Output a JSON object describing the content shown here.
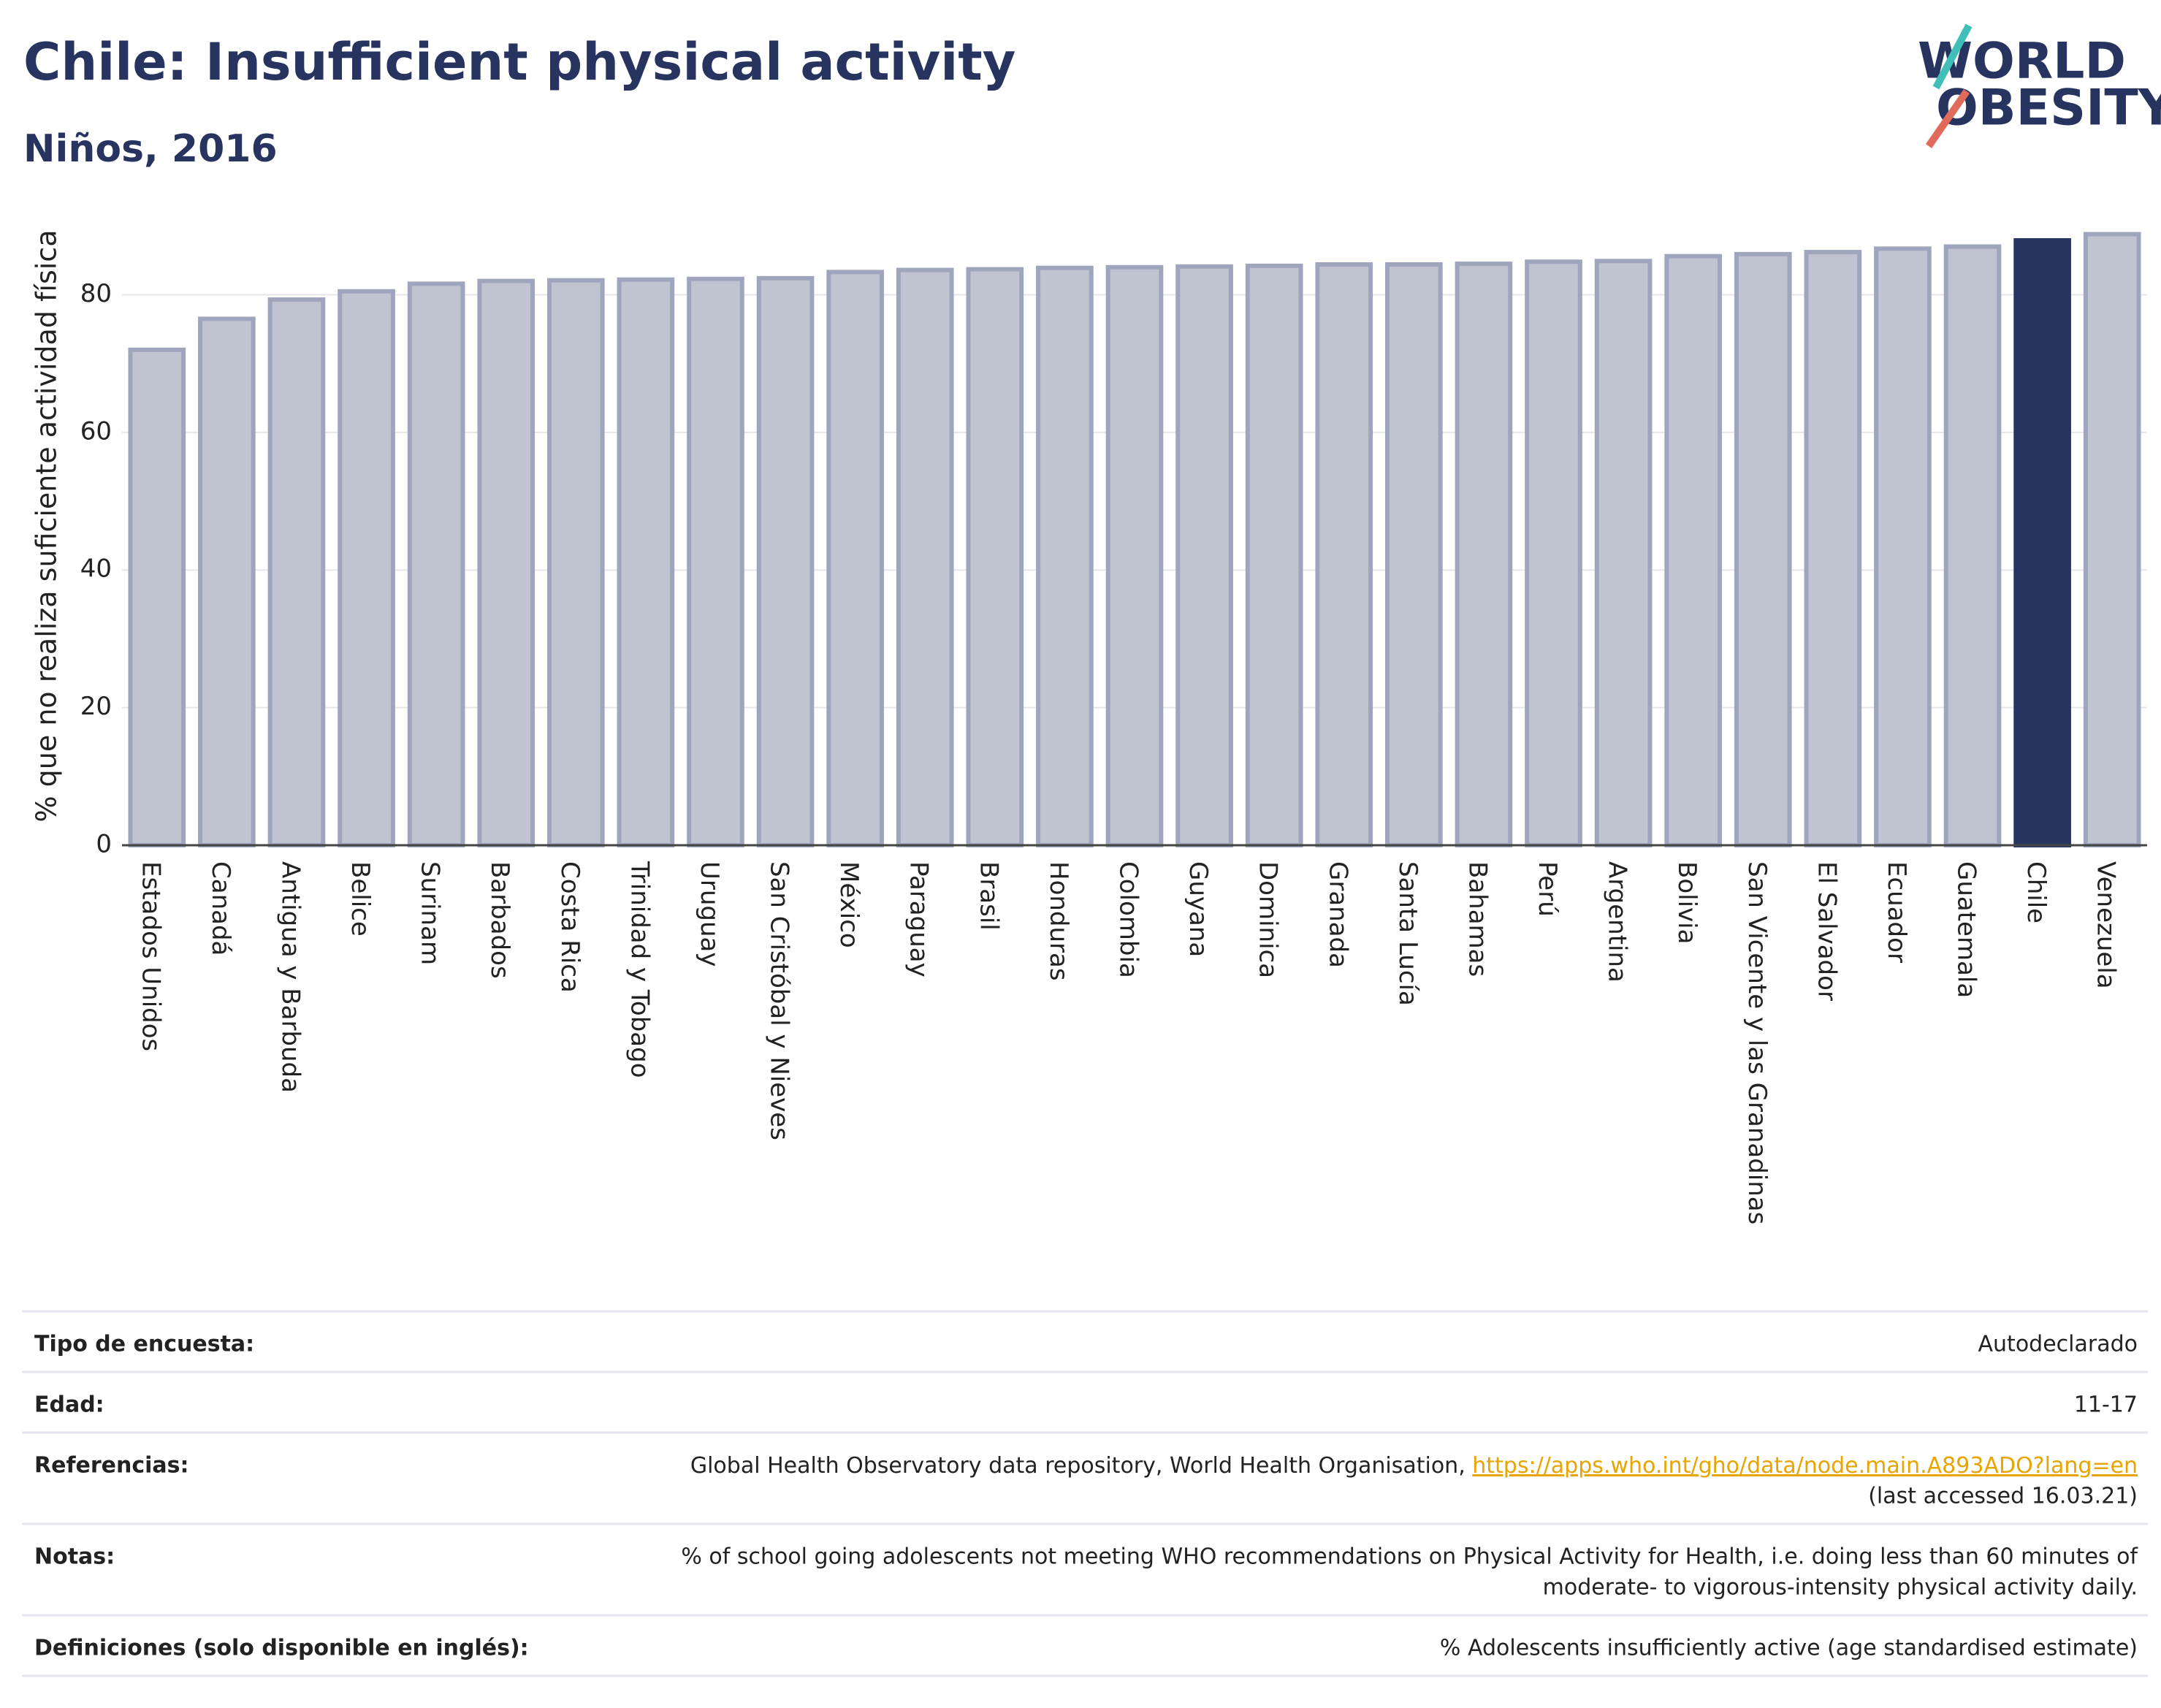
{
  "chart_data": {
    "type": "bar",
    "title": "Chile: Insufficient physical activity",
    "subtitle": "Niños, 2016",
    "y_label": "% que no realiza suficiente actividad física",
    "categories": [
      "Estados Unidos",
      "Canadá",
      "Antigua y Barbuda",
      "Belice",
      "Surinam",
      "Barbados",
      "Costa Rica",
      "Trinidad y Tobago",
      "Uruguay",
      "San Cristóbal y Nieves",
      "México",
      "Paraguay",
      "Brasil",
      "Honduras",
      "Colombia",
      "Guyana",
      "Dominica",
      "Granada",
      "Santa Lucía",
      "Bahamas",
      "Perú",
      "Argentina",
      "Bolivia",
      "San Vicente y las Granadinas",
      "El Salvador",
      "Ecuador",
      "Guatemala",
      "Chile",
      "Venezuela"
    ],
    "values": [
      72,
      76.5,
      79.3,
      80.5,
      81.6,
      82,
      82.1,
      82.2,
      82.3,
      82.4,
      83.3,
      83.6,
      83.7,
      83.9,
      84,
      84.1,
      84.2,
      84.4,
      84.4,
      84.5,
      84.8,
      84.9,
      85.6,
      85.9,
      86.2,
      86.7,
      87,
      87.9,
      88.8
    ],
    "colors": [
      "#c0c3d0",
      "#c0c3d0",
      "#c0c3d0",
      "#c0c3d0",
      "#c0c3d0",
      "#c0c3d0",
      "#c0c3d0",
      "#c0c3d0",
      "#c0c3d0",
      "#c0c3d0",
      "#c0c3d0",
      "#c0c3d0",
      "#c0c3d0",
      "#c0c3d0",
      "#c0c3d0",
      "#c0c3d0",
      "#c0c3d0",
      "#c0c3d0",
      "#c0c3d0",
      "#c0c3d0",
      "#c0c3d0",
      "#c0c3d0",
      "#c0c3d0",
      "#c0c3d0",
      "#c0c3d0",
      "#c0c3d0",
      "#c0c3d0",
      "#283460",
      "#c0c3d0"
    ],
    "ylim": [
      0,
      93
    ],
    "yticks": [
      0,
      20,
      40,
      60,
      80
    ],
    "grid": true
  },
  "logo": [
    "WORLD",
    "OBESITY"
  ],
  "table": {
    "rows": [
      {
        "label": "Tipo de encuesta:",
        "value": [
          "Autodeclarado"
        ]
      },
      {
        "label": "Edad:",
        "value": [
          "11-17"
        ]
      },
      {
        "label": "Referencias:",
        "value": [
          "Global Health Observatory data repository, World Health Organisation, ",
          "(last accessed 16.03.21)"
        ],
        "link": "https://apps.who.int/gho/data/node.main.A893ADO?lang=en"
      },
      {
        "label": "Notas:",
        "value": [
          "% of school going adolescents not meeting WHO recommendations on Physical Activity for Health, i.e. doing less than 60 minutes of",
          "moderate- to vigorous-intensity physical activity daily."
        ]
      },
      {
        "label": "Definiciones (solo disponible en inglés):",
        "value": [
          "% Adolescents insufficiently active (age standardised estimate)"
        ]
      }
    ]
  }
}
